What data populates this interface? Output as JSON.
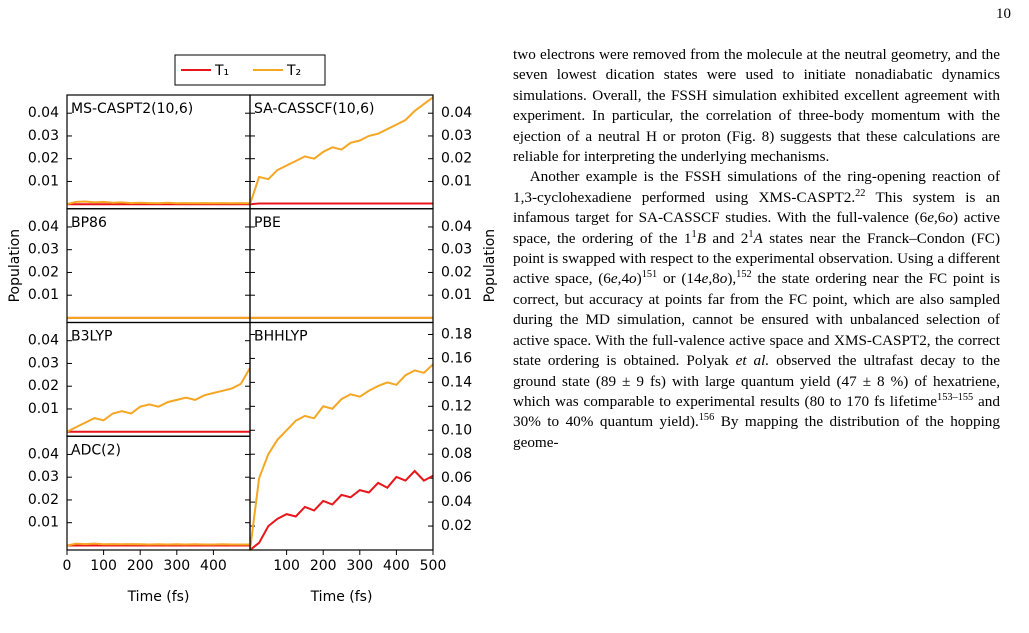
{
  "page_number": "10",
  "chart_data": [
    {
      "type": "line",
      "title": "MS-CASPT2(10,6)",
      "x": [
        0,
        25,
        50,
        75,
        100,
        125,
        150,
        175,
        200,
        225,
        250,
        275,
        300,
        325,
        350,
        375,
        400,
        425,
        450,
        475,
        500
      ],
      "series": [
        {
          "name": "T₁",
          "color": "#e8161b",
          "values": [
            0,
            0,
            0,
            0,
            0,
            0,
            0,
            0,
            0,
            0,
            0,
            0,
            0,
            0,
            0,
            0,
            0,
            0,
            0,
            0,
            0
          ]
        },
        {
          "name": "T₂",
          "color": "#f5a623",
          "values": [
            0,
            0.001,
            0.0012,
            0.0008,
            0.001,
            0.0006,
            0.0008,
            0.0005,
            0.0006,
            0.0005,
            0.0004,
            0.0006,
            0.0004,
            0.0005,
            0.0004,
            0.0005,
            0.0004,
            0.0005,
            0.0004,
            0.0005,
            0.0004
          ]
        }
      ],
      "xlim": [
        0,
        500
      ],
      "ylim": [
        -0.002,
        0.048
      ],
      "yticks": [
        0.01,
        0.02,
        0.03,
        0.04
      ]
    },
    {
      "type": "line",
      "title": "SA-CASSCF(10,6)",
      "x": [
        0,
        25,
        50,
        75,
        100,
        125,
        150,
        175,
        200,
        225,
        250,
        275,
        300,
        325,
        350,
        375,
        400,
        425,
        450,
        475,
        500
      ],
      "series": [
        {
          "name": "T₁",
          "color": "#e8161b",
          "values": [
            0,
            0.0003,
            0.0003,
            0.0003,
            0.0003,
            0.0003,
            0.0003,
            0.0003,
            0.0003,
            0.0003,
            0.0003,
            0.0003,
            0.0003,
            0.0003,
            0.0003,
            0.0003,
            0.0003,
            0.0003,
            0.0003,
            0.0003,
            0.0003
          ]
        },
        {
          "name": "T₂",
          "color": "#f5a623",
          "values": [
            0,
            0.012,
            0.011,
            0.015,
            0.017,
            0.019,
            0.021,
            0.02,
            0.023,
            0.025,
            0.024,
            0.027,
            0.028,
            0.03,
            0.031,
            0.033,
            0.035,
            0.037,
            0.041,
            0.044,
            0.047
          ]
        }
      ],
      "xlim": [
        0,
        500
      ],
      "ylim": [
        -0.002,
        0.048
      ],
      "yticks": [
        0.01,
        0.02,
        0.03,
        0.04
      ]
    },
    {
      "type": "line",
      "title": "BP86",
      "x": [
        0,
        25,
        50,
        75,
        100,
        125,
        150,
        175,
        200,
        225,
        250,
        275,
        300,
        325,
        350,
        375,
        400,
        425,
        450,
        475,
        500
      ],
      "series": [
        {
          "name": "T₁",
          "color": "#e8161b",
          "values": [
            0,
            0,
            0,
            0,
            0,
            0,
            0,
            0,
            0,
            0,
            0,
            0,
            0,
            0,
            0,
            0,
            0,
            0,
            0,
            0,
            0
          ]
        },
        {
          "name": "T₂",
          "color": "#f5a623",
          "values": [
            0,
            0,
            0,
            0,
            0,
            0,
            0,
            0,
            0,
            0,
            0,
            0,
            0,
            0,
            0,
            0,
            0,
            0,
            0,
            0,
            0
          ]
        }
      ],
      "xlim": [
        0,
        500
      ],
      "ylim": [
        -0.002,
        0.048
      ],
      "yticks": [
        0.01,
        0.02,
        0.03,
        0.04
      ],
      "ylabel": "Population"
    },
    {
      "type": "line",
      "title": "PBE",
      "x": [
        0,
        25,
        50,
        75,
        100,
        125,
        150,
        175,
        200,
        225,
        250,
        275,
        300,
        325,
        350,
        375,
        400,
        425,
        450,
        475,
        500
      ],
      "series": [
        {
          "name": "T₁",
          "color": "#e8161b",
          "values": [
            0,
            0,
            0,
            0,
            0,
            0,
            0,
            0,
            0,
            0,
            0,
            0,
            0,
            0,
            0,
            0,
            0,
            0,
            0,
            0,
            0
          ]
        },
        {
          "name": "T₂",
          "color": "#f5a623",
          "values": [
            0,
            0,
            0,
            0,
            0,
            0,
            0,
            0,
            0,
            0,
            0,
            0,
            0,
            0,
            0,
            0,
            0,
            0,
            0,
            0,
            0
          ]
        }
      ],
      "xlim": [
        0,
        500
      ],
      "ylim": [
        -0.002,
        0.048
      ],
      "yticks": [
        0.01,
        0.02,
        0.03,
        0.04
      ],
      "ylabel": "Population"
    },
    {
      "type": "line",
      "title": "B3LYP",
      "x": [
        0,
        25,
        50,
        75,
        100,
        125,
        150,
        175,
        200,
        225,
        250,
        275,
        300,
        325,
        350,
        375,
        400,
        425,
        450,
        475,
        500
      ],
      "series": [
        {
          "name": "T₁",
          "color": "#e8161b",
          "values": [
            0,
            0,
            0,
            0,
            0,
            0,
            0,
            0,
            0,
            0,
            0,
            0,
            0,
            0,
            0,
            0,
            0,
            0,
            0,
            0,
            0
          ]
        },
        {
          "name": "T₂",
          "color": "#f5a623",
          "values": [
            0,
            0.002,
            0.004,
            0.006,
            0.005,
            0.008,
            0.009,
            0.008,
            0.011,
            0.012,
            0.011,
            0.013,
            0.014,
            0.015,
            0.014,
            0.016,
            0.017,
            0.018,
            0.019,
            0.021,
            0.028
          ]
        }
      ],
      "xlim": [
        0,
        500
      ],
      "ylim": [
        -0.002,
        0.048
      ],
      "yticks": [
        0.01,
        0.02,
        0.03,
        0.04
      ]
    },
    {
      "type": "line",
      "title": "BHHLYP",
      "x": [
        0,
        25,
        50,
        75,
        100,
        125,
        150,
        175,
        200,
        225,
        250,
        275,
        300,
        325,
        350,
        375,
        400,
        425,
        450,
        475,
        500
      ],
      "series": [
        {
          "name": "T₁",
          "color": "#e8161b",
          "values": [
            0,
            0.006,
            0.02,
            0.026,
            0.03,
            0.028,
            0.036,
            0.033,
            0.041,
            0.038,
            0.046,
            0.044,
            0.05,
            0.048,
            0.056,
            0.052,
            0.061,
            0.058,
            0.066,
            0.058,
            0.062
          ]
        },
        {
          "name": "T₂",
          "color": "#f5a623",
          "values": [
            0,
            0.06,
            0.08,
            0.092,
            0.1,
            0.108,
            0.112,
            0.11,
            0.12,
            0.118,
            0.126,
            0.13,
            0.128,
            0.133,
            0.137,
            0.14,
            0.138,
            0.146,
            0.15,
            0.148,
            0.155
          ]
        }
      ],
      "xlim": [
        0,
        500
      ],
      "ylim": [
        0,
        0.19
      ],
      "yticks": [
        0.02,
        0.04,
        0.06,
        0.08,
        0.1,
        0.12,
        0.14,
        0.16,
        0.18
      ],
      "ytick_labels": [
        "0.02",
        "0.04",
        "0.06",
        "0.08",
        "0.10",
        "0.12",
        "0.14",
        "0.16",
        "0.18"
      ],
      "xticks": [
        100,
        200,
        300,
        400,
        500
      ],
      "xlabel": "Time (fs)"
    },
    {
      "type": "line",
      "title": "ADC(2)",
      "x": [
        0,
        25,
        50,
        75,
        100,
        125,
        150,
        175,
        200,
        225,
        250,
        275,
        300,
        325,
        350,
        375,
        400,
        425,
        450,
        475,
        500
      ],
      "series": [
        {
          "name": "T₁",
          "color": "#e8161b",
          "values": [
            0,
            0,
            0,
            0,
            0,
            0,
            0,
            0,
            0,
            0,
            0,
            0,
            0,
            0,
            0,
            0,
            0,
            0,
            0,
            0,
            0
          ]
        },
        {
          "name": "T₂",
          "color": "#f5a623",
          "values": [
            0,
            0.0008,
            0.0006,
            0.0008,
            0.0005,
            0.0006,
            0.0005,
            0.0006,
            0.0005,
            0.0004,
            0.0005,
            0.0004,
            0.0005,
            0.0004,
            0.0005,
            0.0004,
            0.0004,
            0.0005,
            0.0004,
            0.0004,
            0.0004
          ]
        }
      ],
      "xlim": [
        0,
        500
      ],
      "ylim": [
        -0.002,
        0.048
      ],
      "yticks": [
        0.01,
        0.02,
        0.03,
        0.04
      ],
      "xticks": [
        0,
        100,
        200,
        300,
        400
      ],
      "xlabel": "Time (fs)"
    }
  ],
  "body": {
    "paragraphs": [
      [
        {
          "t": "two electrons were removed from the molecule at the neutral geometry, and the seven lowest dication states were used to initiate nonadiabatic dynamics simulations. Overall, the FSSH simulation exhibited excellent agreement with experiment. In particular, the correlation of three-body momentum with the ejection of a neutral H or proton (Fig. 8) suggests that these calculations are reliable for interpreting the underlying mechanisms."
        }
      ],
      [
        {
          "t": "Another example is the FSSH simulations of the ring-opening reaction of 1,3-cyclohexadiene performed using XMS-CASPT2."
        },
        {
          "sup": "22"
        },
        {
          "t": " This system is an infamous target for SA-CASSCF studies. With the full-valence (6"
        },
        {
          "i": "e"
        },
        {
          "t": ",6"
        },
        {
          "i": "o"
        },
        {
          "t": ") active space, the ordering of the 1"
        },
        {
          "sup": "1"
        },
        {
          "i": "B"
        },
        {
          "t": " and 2"
        },
        {
          "sup": "1"
        },
        {
          "i": "A"
        },
        {
          "t": " states near the Franck–Condon (FC) point is swapped with respect to the experimental observation. Using a different active space, (6"
        },
        {
          "i": "e"
        },
        {
          "t": ",4"
        },
        {
          "i": "o"
        },
        {
          "t": ")"
        },
        {
          "sup": "151"
        },
        {
          "t": " or (14"
        },
        {
          "i": "e"
        },
        {
          "t": ",8"
        },
        {
          "i": "o"
        },
        {
          "t": "),"
        },
        {
          "sup": "152"
        },
        {
          "t": " the state ordering near the FC point is correct, but accuracy at points far from the FC point, which are also sampled during the MD simulation, cannot be ensured with unbalanced selection of active space. With the full-valence active space and XMS-CASPT2, the correct state ordering is obtained. Polyak "
        },
        {
          "i": "et al."
        },
        {
          "t": " observed the ultrafast decay to the ground state (89 ± 9 fs) with large quantum yield (47 ± 8 %) of hexatriene, which was comparable to experimental results (80 to 170 fs lifetime"
        },
        {
          "sup": "153–155"
        },
        {
          "t": " and 30% to 40% quantum yield)."
        },
        {
          "sup": "156"
        },
        {
          "t": " By mapping the distribution of the hopping geome-"
        }
      ]
    ]
  }
}
